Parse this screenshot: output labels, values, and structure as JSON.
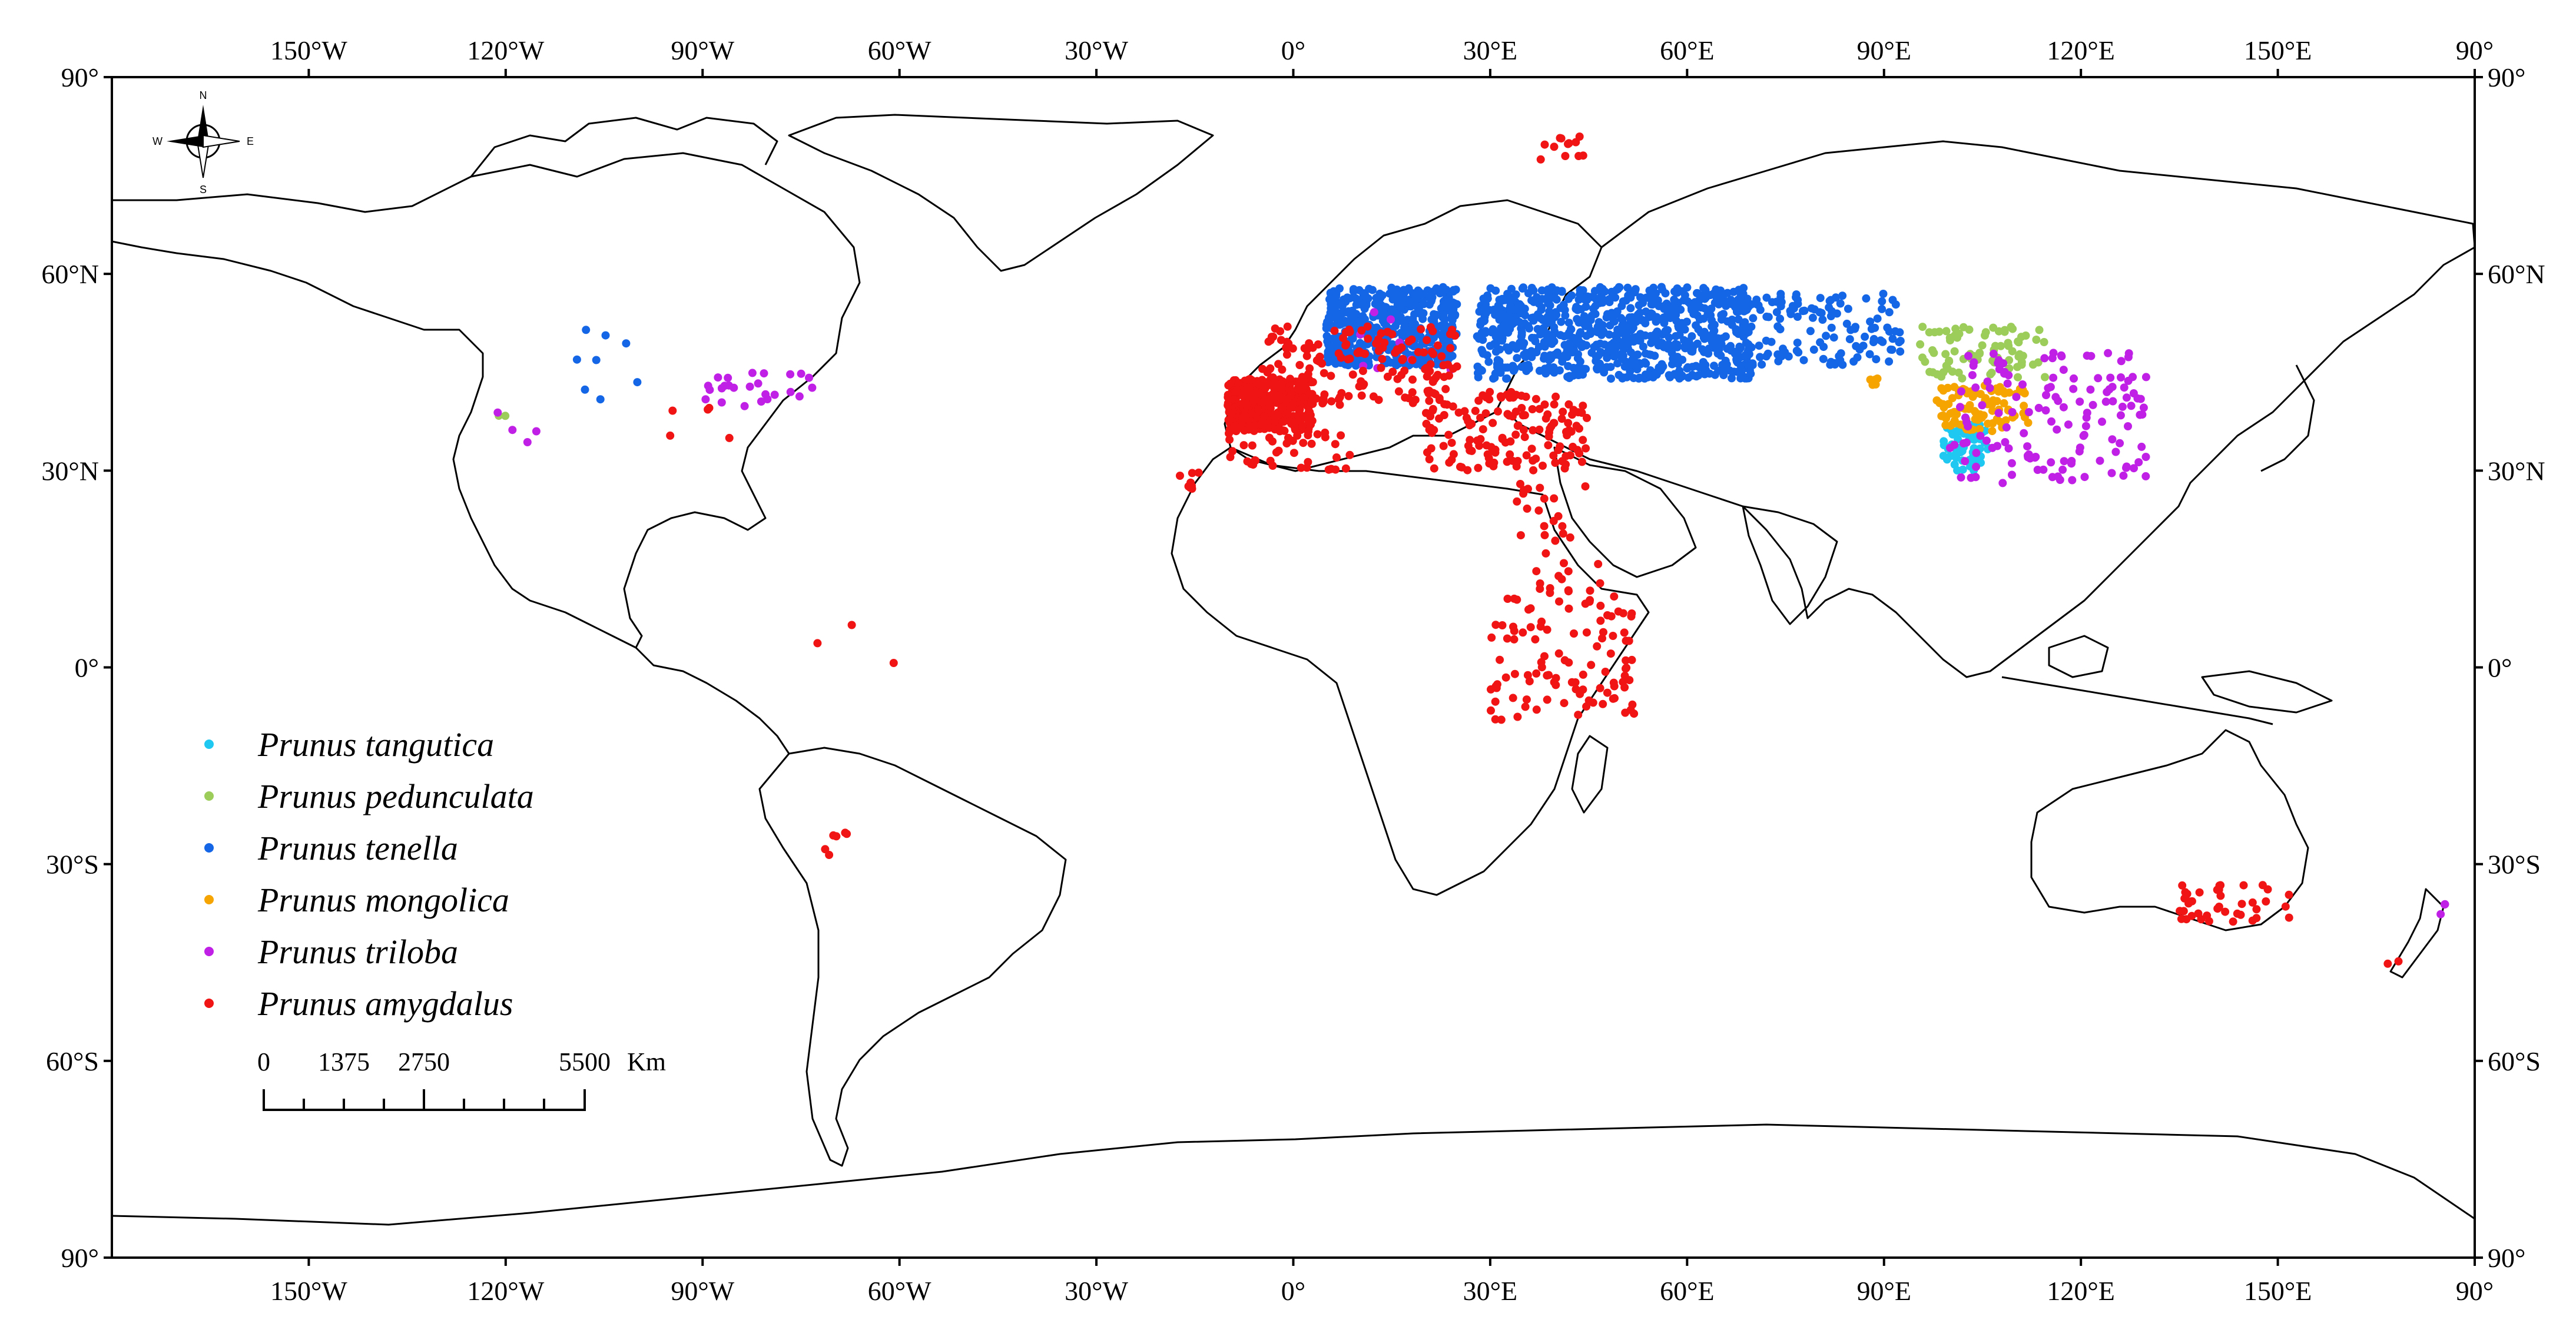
{
  "axes": {
    "lon_ticks": [
      "150°W",
      "120°W",
      "90°W",
      "60°W",
      "30°W",
      "0°",
      "30°E",
      "60°E",
      "90°E",
      "120°E",
      "150°E",
      "90°"
    ],
    "lat_ticks_left": [
      "90°",
      "60°N",
      "30°N",
      "0°",
      "30°S",
      "60°S",
      "90°"
    ],
    "lat_ticks_right": [
      "90°",
      "60°N",
      "30°N",
      "0°",
      "30°S",
      "60°S",
      "90°"
    ]
  },
  "compass": {
    "n": "N",
    "s": "S",
    "e": "E",
    "w": "W"
  },
  "legend": {
    "items": [
      {
        "label": "Prunus tangutica",
        "color": "#1ec8f0"
      },
      {
        "label": "Prunus pedunculata",
        "color": "#9ccc5a"
      },
      {
        "label": "Prunus tenella",
        "color": "#1466e6"
      },
      {
        "label": "Prunus mongolica",
        "color": "#f5a400"
      },
      {
        "label": "Prunus triloba",
        "color": "#c020e6"
      },
      {
        "label": "Prunus amygdalus",
        "color": "#f01414"
      }
    ]
  },
  "scale_bar": {
    "labels": [
      "0",
      "1375",
      "2750",
      "5500"
    ],
    "unit": "Km"
  },
  "colors": {
    "land_outline": "#000000",
    "background": "#ffffff"
  },
  "chart_data": {
    "type": "scatter",
    "lon_range": [
      -180,
      180
    ],
    "lat_range": [
      -90,
      90
    ],
    "series": [
      {
        "name": "Prunus tangutica",
        "clusters": [
          {
            "lon": [
              99,
              106
            ],
            "lat": [
              30,
              37
            ],
            "n": 70
          }
        ]
      },
      {
        "name": "Prunus pedunculata",
        "clusters": [
          {
            "lon": [
              95,
              115
            ],
            "lat": [
              44,
              52
            ],
            "n": 80
          },
          {
            "lon": [
              -122,
              -120
            ],
            "lat": [
              37,
              39
            ],
            "n": 2
          }
        ]
      },
      {
        "name": "Prunus tenella",
        "clusters": [
          {
            "lon": [
              5,
              25
            ],
            "lat": [
              46,
              58
            ],
            "n": 500
          },
          {
            "lon": [
              28,
              70
            ],
            "lat": [
              44,
              58
            ],
            "n": 800
          },
          {
            "lon": [
              70,
              93
            ],
            "lat": [
              46,
              57
            ],
            "n": 120
          },
          {
            "lon": [
              -110,
              -96
            ],
            "lat": [
              39,
              52
            ],
            "n": 8
          }
        ]
      },
      {
        "name": "Prunus mongolica",
        "clusters": [
          {
            "lon": [
              98,
              112
            ],
            "lat": [
              36,
              43
            ],
            "n": 90
          },
          {
            "lon": [
              86,
              90
            ],
            "lat": [
              43,
              46
            ],
            "n": 5
          }
        ]
      },
      {
        "name": "Prunus triloba",
        "clusters": [
          {
            "lon": [
              100,
              130
            ],
            "lat": [
              28,
              48
            ],
            "n": 140
          },
          {
            "lon": [
              -90,
              -72
            ],
            "lat": [
              39,
              45
            ],
            "n": 25
          },
          {
            "lon": [
              -122,
              -115
            ],
            "lat": [
              33,
              40
            ],
            "n": 4
          },
          {
            "lon": [
              10,
              25
            ],
            "lat": [
              45,
              55
            ],
            "n": 8
          },
          {
            "lon": [
              174,
              178
            ],
            "lat": [
              -38,
              -36
            ],
            "n": 3
          }
        ]
      },
      {
        "name": "Prunus amygdalus",
        "clusters": [
          {
            "lon": [
              -10,
              3
            ],
            "lat": [
              36,
              44
            ],
            "n": 400
          },
          {
            "lon": [
              -5,
              25
            ],
            "lat": [
              40,
              52
            ],
            "n": 160
          },
          {
            "lon": [
              20,
              45
            ],
            "lat": [
              30,
              42
            ],
            "n": 150
          },
          {
            "lon": [
              -10,
              10
            ],
            "lat": [
              30,
              36
            ],
            "n": 40
          },
          {
            "lon": [
              -18,
              -14
            ],
            "lat": [
              27,
              30
            ],
            "n": 8
          },
          {
            "lon": [
              30,
              52
            ],
            "lat": [
              -8,
              12
            ],
            "n": 110
          },
          {
            "lon": [
              34,
              47
            ],
            "lat": [
              12,
              28
            ],
            "n": 30
          },
          {
            "lon": [
              135,
              152
            ],
            "lat": [
              -39,
              -33
            ],
            "n": 40
          },
          {
            "lon": [
              37,
              45
            ],
            "lat": [
              77,
              81
            ],
            "n": 12
          },
          {
            "lon": [
              -72,
              -68
            ],
            "lat": [
              -35,
              -15
            ],
            "n": 6
          },
          {
            "lon": [
              -78,
              -60
            ],
            "lat": [
              -5,
              10
            ],
            "n": 3
          },
          {
            "lon": [
              -95,
              -85
            ],
            "lat": [
              33,
              42
            ],
            "n": 5
          },
          {
            "lon": [
              166,
              170
            ],
            "lat": [
              -47,
              -44
            ],
            "n": 2
          }
        ]
      }
    ]
  }
}
